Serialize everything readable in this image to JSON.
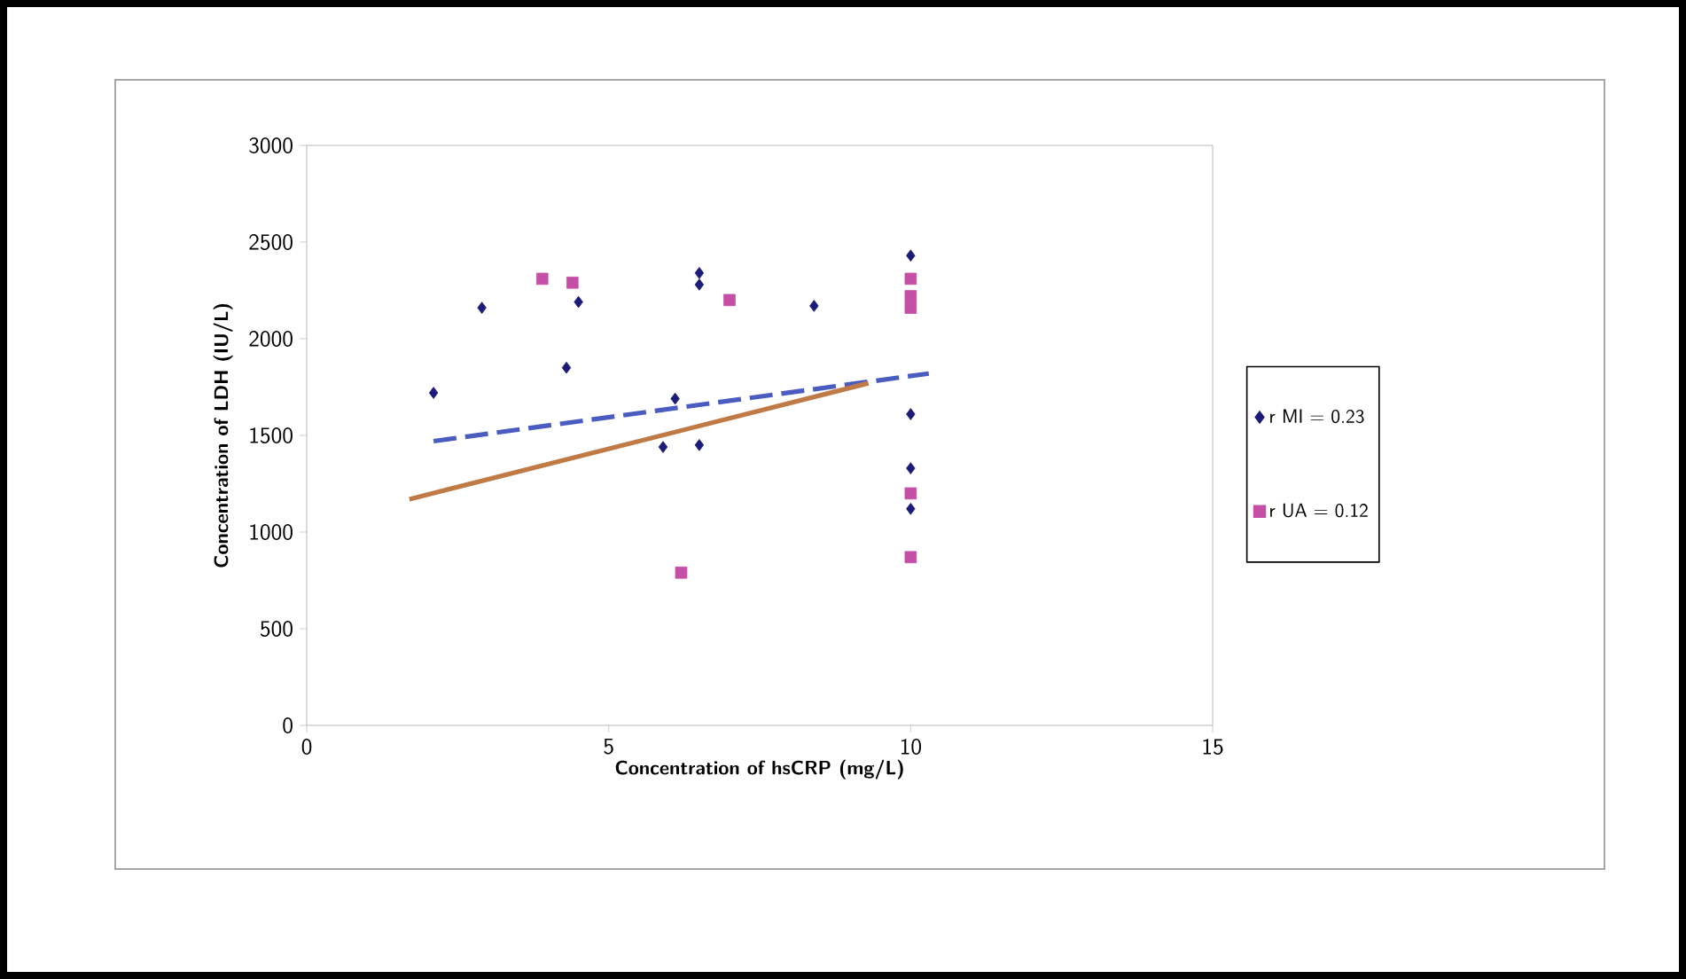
{
  "chart_data": {
    "type": "scatter",
    "xlabel": "Concentration of hsCRP  (mg/L)",
    "ylabel": "Concentration of LDH  (IU/L)",
    "xlim": [
      0,
      15
    ],
    "xticks": [
      0,
      5,
      10,
      15
    ],
    "ylim": [
      0,
      3000
    ],
    "yticks": [
      0,
      500,
      1000,
      1500,
      2000,
      2500,
      3000
    ],
    "grid": false,
    "legend": "right",
    "series": [
      {
        "name": "r MI  =  0.23",
        "color": "#1c1c78",
        "marker": "diamond",
        "x": [
          2.1,
          2.9,
          4.5,
          4.3,
          6.5,
          6.5,
          8.4,
          10,
          10,
          10,
          10,
          6.1,
          5.9,
          6.5
        ],
        "values": [
          1720,
          2160,
          2190,
          1850,
          2340,
          2280,
          2170,
          2430,
          1610,
          1330,
          1120,
          1690,
          1440,
          1450
        ]
      },
      {
        "name": "r UA = 0.12",
        "color": "#c64fa6",
        "marker": "square",
        "x": [
          3.9,
          4.4,
          7.0,
          6.2,
          10,
          10,
          10,
          10,
          10
        ],
        "values": [
          2310,
          2290,
          2200,
          790,
          2310,
          2220,
          2160,
          1200,
          870
        ]
      },
      {
        "type": "line",
        "color": "#4a5cc0",
        "line_style": "dashed",
        "marker": "none",
        "x": [
          2.1,
          10.3
        ],
        "values": [
          1470,
          1820
        ]
      },
      {
        "type": "line",
        "color": "#c07a45",
        "line_style": "solid",
        "marker": "none",
        "x": [
          1.7,
          9.3
        ],
        "values": [
          1170,
          1770
        ]
      }
    ]
  }
}
